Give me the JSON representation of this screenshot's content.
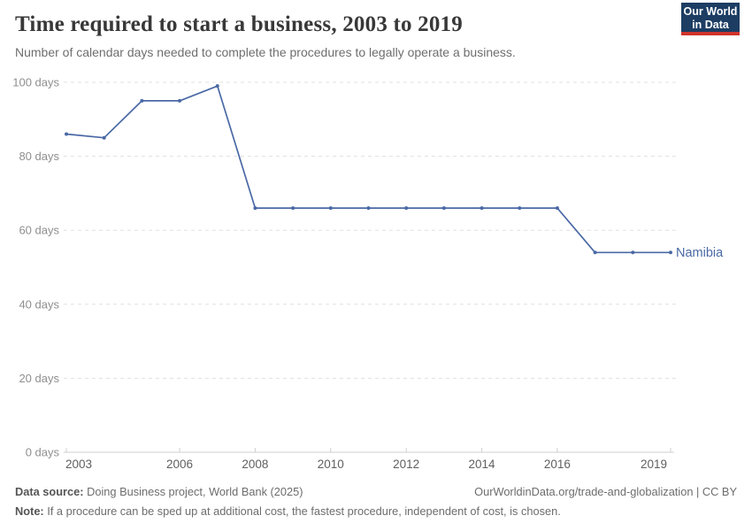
{
  "header": {
    "title": "Time required to start a business, 2003 to 2019",
    "subtitle": "Number of calendar days needed to complete the procedures to legally operate a business.",
    "logo": {
      "line1": "Our World",
      "line2": "in Data",
      "bg_color": "#1d3d63",
      "bar_color": "#d0342c"
    }
  },
  "chart_data": {
    "type": "line",
    "title": "Time required to start a business, 2003 to 2019",
    "xlabel": "",
    "ylabel": "",
    "xlim": [
      2003,
      2019
    ],
    "ylim": [
      0,
      100
    ],
    "grid": "horizontal-dashed",
    "legend_position": "end-of-line-label",
    "x": [
      2003,
      2004,
      2005,
      2006,
      2007,
      2008,
      2009,
      2010,
      2011,
      2012,
      2013,
      2014,
      2015,
      2016,
      2017,
      2018,
      2019
    ],
    "series": [
      {
        "name": "Namibia",
        "color": "#4a69a5",
        "values": [
          86,
          85,
          95,
          95,
          99,
          66,
          66,
          66,
          66,
          66,
          66,
          66,
          66,
          66,
          54,
          54,
          54
        ]
      }
    ],
    "xticks": [
      2003,
      2006,
      2008,
      2010,
      2012,
      2014,
      2016,
      2019
    ],
    "yticks": [
      0,
      20,
      40,
      60,
      80,
      100
    ],
    "ytick_labels": [
      "0 days",
      "20 days",
      "40 days",
      "60 days",
      "80 days",
      "100 days"
    ],
    "axis_color": "#cfcfcf",
    "grid_color": "#e0e0e0"
  },
  "footer": {
    "datasource_label": "Data source:",
    "datasource_text": " Doing Business project, World Bank (2025)",
    "url_text": "OurWorldinData.org/trade-and-globalization | CC BY",
    "note_label": "Note:",
    "note_text": " If a procedure can be sped up at additional cost, the fastest procedure, independent of cost, is chosen."
  }
}
